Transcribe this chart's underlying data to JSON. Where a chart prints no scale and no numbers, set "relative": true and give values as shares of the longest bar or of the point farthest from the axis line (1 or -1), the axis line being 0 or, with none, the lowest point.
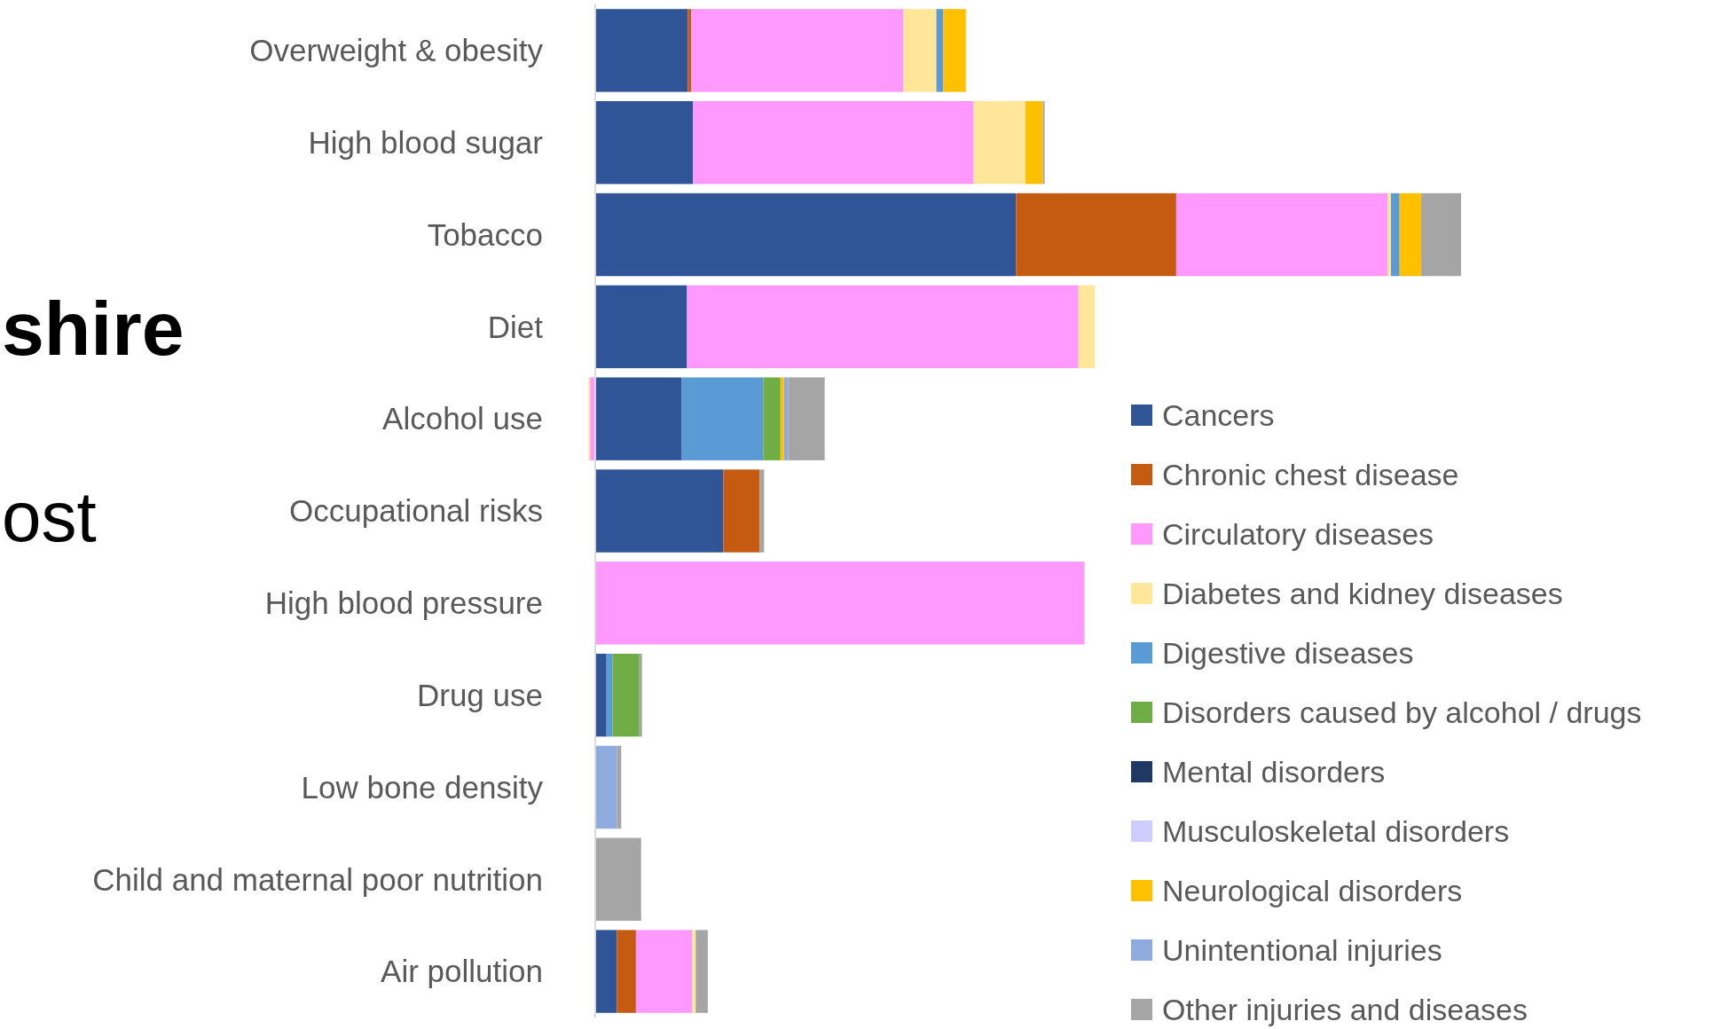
{
  "chart_data": {
    "type": "bar",
    "orientation": "horizontal",
    "stacked": true,
    "relative": true,
    "legend": "right",
    "categories": [
      "Overweight & obesity",
      "High blood sugar",
      "Tobacco",
      "Diet",
      "Alcohol use",
      "Occupational risks",
      "High blood pressure",
      "Drug use",
      "Low bone density",
      "Child and maternal poor nutrition",
      "Air pollution"
    ],
    "series": [
      {
        "name": "Cancers",
        "color": "#2f5597",
        "values": [
          0.107,
          0.113,
          0.486,
          0.106,
          0.1,
          0.148,
          null,
          0.013,
          null,
          null,
          0.025
        ]
      },
      {
        "name": "Chronic chest disease",
        "color": "#c55a11",
        "values": [
          0.004,
          null,
          0.185,
          null,
          null,
          0.042,
          null,
          null,
          null,
          null,
          0.022
        ]
      },
      {
        "name": "Circulatory diseases",
        "color": "#ff99ff",
        "values": [
          0.245,
          0.324,
          0.244,
          0.452,
          -0.006,
          null,
          0.565,
          null,
          null,
          null,
          0.065
        ]
      },
      {
        "name": "Diabetes and kidney diseases",
        "color": "#ffe699",
        "values": [
          0.038,
          0.06,
          0.004,
          0.019,
          -0.002,
          null,
          null,
          null,
          null,
          null,
          0.004
        ]
      },
      {
        "name": "Digestive diseases",
        "color": "#5b9bd5",
        "values": [
          0.008,
          null,
          0.01,
          null,
          0.094,
          null,
          null,
          0.007,
          null,
          null,
          null
        ]
      },
      {
        "name": "Disorders caused by alcohol / drugs",
        "color": "#70ad47",
        "values": [
          null,
          null,
          null,
          null,
          0.02,
          null,
          null,
          0.031,
          null,
          null,
          null
        ]
      },
      {
        "name": "Mental disorders",
        "color": "#203864",
        "values": [
          null,
          null,
          null,
          null,
          null,
          null,
          null,
          null,
          null,
          null,
          null
        ]
      },
      {
        "name": "Musculoskeletal disorders",
        "color": "#ccccff",
        "values": [
          null,
          null,
          null,
          null,
          null,
          null,
          null,
          null,
          null,
          null,
          null
        ]
      },
      {
        "name": "Neurological disorders",
        "color": "#ffc000",
        "values": [
          0.026,
          0.02,
          0.025,
          null,
          0.004,
          null,
          null,
          null,
          null,
          null,
          null
        ]
      },
      {
        "name": "Unintentional injuries",
        "color": "#8faadc",
        "values": [
          null,
          null,
          null,
          null,
          0.005,
          null,
          null,
          null,
          0.025,
          null,
          null
        ]
      },
      {
        "name": "Other injuries and diseases",
        "color": "#a5a5a5",
        "values": [
          null,
          0.002,
          0.046,
          null,
          0.042,
          0.005,
          null,
          0.003,
          0.005,
          0.053,
          0.014
        ]
      }
    ],
    "annotations": [
      "shire",
      "ost"
    ]
  }
}
